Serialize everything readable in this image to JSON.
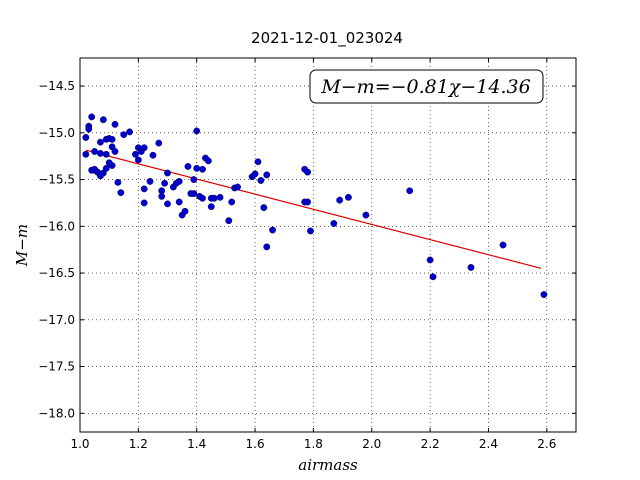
{
  "chart_data": {
    "type": "scatter",
    "title": "2021-12-01_023024",
    "xlabel": "airmass",
    "ylabel": "M−m",
    "xlim": [
      1.0,
      2.7
    ],
    "ylim": [
      -18.2,
      -14.2
    ],
    "y_inverted": true,
    "grid": true,
    "xticks": [
      "1.0",
      "1.2",
      "1.4",
      "1.6",
      "1.8",
      "2.0",
      "2.2",
      "2.4",
      "2.6"
    ],
    "yticks": [
      "−14.5",
      "−15.0",
      "−15.5",
      "−16.0",
      "−16.5",
      "−17.0",
      "−17.5",
      "−18.0"
    ],
    "annotation": "M−m=−0.81χ−14.36",
    "fit_line": {
      "slope": -0.81,
      "intercept": -14.36,
      "x_range": [
        1.02,
        2.58
      ]
    },
    "colors": {
      "points": "#0000cc",
      "fit": "#dd0000"
    },
    "x": [
      1.03,
      1.02,
      1.04,
      1.02,
      1.05,
      1.07,
      1.08,
      1.1,
      1.11,
      1.12,
      1.12,
      1.11,
      1.09,
      1.07,
      1.05,
      1.06,
      1.08,
      1.1,
      1.09,
      1.11,
      1.13,
      1.14,
      1.15,
      1.17,
      1.19,
      1.2,
      1.21,
      1.22,
      1.22,
      1.2,
      1.25,
      1.27,
      1.28,
      1.29,
      1.3,
      1.32,
      1.33,
      1.35,
      1.36,
      1.38,
      1.37,
      1.39,
      1.4,
      1.41,
      1.42,
      1.43,
      1.45,
      1.44,
      1.46,
      1.4,
      1.3,
      1.28,
      1.24,
      1.22,
      1.34,
      1.34,
      1.39,
      1.42,
      1.45,
      1.48,
      1.51,
      1.52,
      1.53,
      1.54,
      1.59,
      1.6,
      1.61,
      1.62,
      1.63,
      1.64,
      1.64,
      1.66,
      1.77,
      1.78,
      1.78,
      1.77,
      1.79,
      1.87,
      1.89,
      1.92,
      1.98,
      2.13,
      2.2,
      2.21,
      2.34,
      2.45,
      2.59,
      1.03,
      1.05,
      1.07,
      1.04,
      1.09
    ],
    "y": [
      -14.93,
      -15.05,
      -14.83,
      -15.23,
      -15.2,
      -15.1,
      -14.86,
      -15.06,
      -15.07,
      -14.91,
      -15.2,
      -15.15,
      -15.23,
      -15.22,
      -15.4,
      -15.42,
      -15.43,
      -15.32,
      -15.38,
      -15.35,
      -15.53,
      -15.64,
      -15.02,
      -14.99,
      -15.23,
      -15.29,
      -15.2,
      -15.16,
      -15.75,
      -15.16,
      -15.24,
      -15.11,
      -15.62,
      -15.54,
      -15.43,
      -15.58,
      -15.54,
      -15.88,
      -15.84,
      -15.65,
      -15.36,
      -15.65,
      -15.38,
      -15.68,
      -15.39,
      -15.27,
      -15.7,
      -15.3,
      -15.7,
      -14.98,
      -15.76,
      -15.68,
      -15.52,
      -15.6,
      -15.74,
      -15.52,
      -15.5,
      -15.7,
      -15.79,
      -15.69,
      -15.94,
      -15.74,
      -15.59,
      -15.58,
      -15.47,
      -15.44,
      -15.31,
      -15.51,
      -15.8,
      -15.45,
      -16.22,
      -16.04,
      -15.39,
      -15.42,
      -15.74,
      -15.74,
      -16.05,
      -15.97,
      -15.72,
      -15.69,
      -15.88,
      -15.62,
      -16.36,
      -16.54,
      -16.44,
      -16.2,
      -16.73,
      -14.96,
      -15.39,
      -15.46,
      -15.4,
      -15.07
    ]
  }
}
